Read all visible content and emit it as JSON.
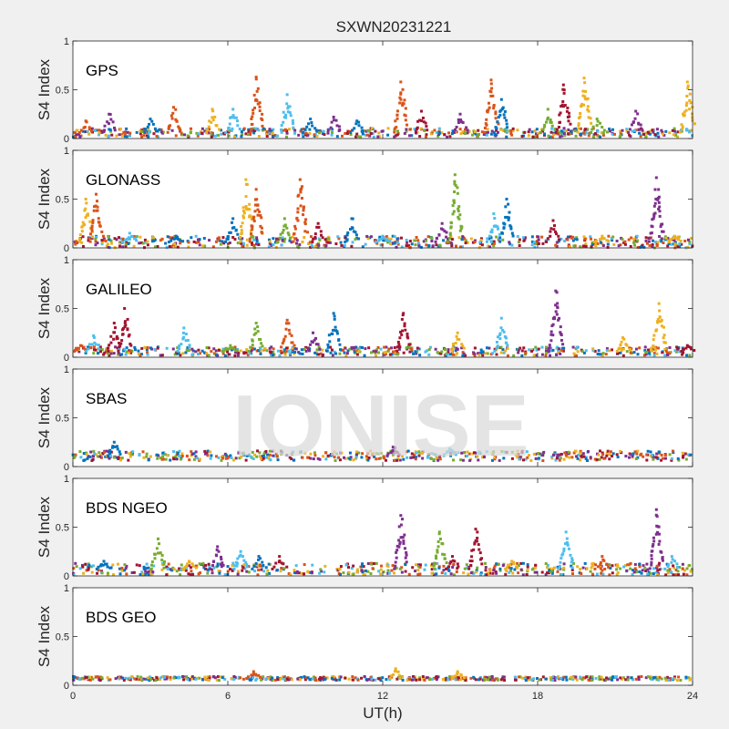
{
  "figure": {
    "title": "SXWN20231221",
    "xlabel": "UT(h)",
    "ylabel": "S4 Index",
    "watermark": "IONISE",
    "background": "#f0f0f0",
    "axes_background": "#ffffff"
  },
  "series_colors": [
    "#0072bd",
    "#d95319",
    "#edb120",
    "#7e2f8e",
    "#77ac30",
    "#4dbeee",
    "#a2142f"
  ],
  "chart_data": [
    {
      "type": "scatter",
      "label": "GPS",
      "xlim": [
        0,
        24
      ],
      "ylim": [
        0,
        1
      ],
      "xticks": [
        0,
        6,
        12,
        18,
        24
      ],
      "yticks": [
        0,
        0.5,
        1
      ],
      "baseline": 0.06,
      "background_band": [
        0.03,
        0.12
      ],
      "bursts": [
        {
          "x": 0.5,
          "peak": 0.18,
          "c": 1
        },
        {
          "x": 1.4,
          "peak": 0.25,
          "c": 3
        },
        {
          "x": 3.0,
          "peak": 0.2,
          "c": 0
        },
        {
          "x": 3.9,
          "peak": 0.32,
          "c": 1
        },
        {
          "x": 5.4,
          "peak": 0.3,
          "c": 2
        },
        {
          "x": 6.2,
          "peak": 0.3,
          "c": 5
        },
        {
          "x": 7.1,
          "peak": 0.63,
          "c": 1
        },
        {
          "x": 8.3,
          "peak": 0.45,
          "c": 5
        },
        {
          "x": 9.2,
          "peak": 0.2,
          "c": 0
        },
        {
          "x": 10.1,
          "peak": 0.22,
          "c": 3
        },
        {
          "x": 11.0,
          "peak": 0.18,
          "c": 0
        },
        {
          "x": 12.7,
          "peak": 0.58,
          "c": 1
        },
        {
          "x": 13.5,
          "peak": 0.28,
          "c": 6
        },
        {
          "x": 15.0,
          "peak": 0.25,
          "c": 3
        },
        {
          "x": 16.2,
          "peak": 0.6,
          "c": 1
        },
        {
          "x": 16.6,
          "peak": 0.4,
          "c": 0
        },
        {
          "x": 18.4,
          "peak": 0.3,
          "c": 4
        },
        {
          "x": 19.0,
          "peak": 0.55,
          "c": 6
        },
        {
          "x": 19.8,
          "peak": 0.62,
          "c": 2
        },
        {
          "x": 20.3,
          "peak": 0.2,
          "c": 4
        },
        {
          "x": 21.8,
          "peak": 0.28,
          "c": 3
        },
        {
          "x": 23.8,
          "peak": 0.58,
          "c": 2
        }
      ]
    },
    {
      "type": "scatter",
      "label": "GLONASS",
      "xlim": [
        0,
        24
      ],
      "ylim": [
        0,
        1
      ],
      "xticks": [
        0,
        6,
        12,
        18,
        24
      ],
      "yticks": [
        0,
        0.5,
        1
      ],
      "baseline": 0.06,
      "background_band": [
        0.02,
        0.14
      ],
      "bursts": [
        {
          "x": 0.5,
          "peak": 0.5,
          "c": 2
        },
        {
          "x": 0.9,
          "peak": 0.55,
          "c": 1
        },
        {
          "x": 2.2,
          "peak": 0.15,
          "c": 5
        },
        {
          "x": 4.0,
          "peak": 0.12,
          "c": 0
        },
        {
          "x": 6.2,
          "peak": 0.3,
          "c": 0
        },
        {
          "x": 6.7,
          "peak": 0.7,
          "c": 2
        },
        {
          "x": 7.1,
          "peak": 0.6,
          "c": 1
        },
        {
          "x": 8.2,
          "peak": 0.3,
          "c": 4
        },
        {
          "x": 8.8,
          "peak": 0.7,
          "c": 1
        },
        {
          "x": 9.5,
          "peak": 0.25,
          "c": 6
        },
        {
          "x": 10.8,
          "peak": 0.3,
          "c": 0
        },
        {
          "x": 12.0,
          "peak": 0.12,
          "c": 5
        },
        {
          "x": 14.3,
          "peak": 0.25,
          "c": 3
        },
        {
          "x": 14.8,
          "peak": 0.75,
          "c": 4
        },
        {
          "x": 16.3,
          "peak": 0.35,
          "c": 5
        },
        {
          "x": 16.8,
          "peak": 0.5,
          "c": 0
        },
        {
          "x": 18.6,
          "peak": 0.28,
          "c": 6
        },
        {
          "x": 20.5,
          "peak": 0.12,
          "c": 2
        },
        {
          "x": 22.6,
          "peak": 0.72,
          "c": 3
        },
        {
          "x": 23.3,
          "peak": 0.12,
          "c": 2
        }
      ]
    },
    {
      "type": "scatter",
      "label": "GALILEO",
      "xlim": [
        0,
        24
      ],
      "ylim": [
        0,
        1
      ],
      "xticks": [
        0,
        6,
        12,
        18,
        24
      ],
      "yticks": [
        0,
        0.5,
        1
      ],
      "baseline": 0.06,
      "background_band": [
        0.03,
        0.12
      ],
      "bursts": [
        {
          "x": 0.3,
          "peak": 0.12,
          "c": 1
        },
        {
          "x": 0.8,
          "peak": 0.22,
          "c": 5
        },
        {
          "x": 1.6,
          "peak": 0.35,
          "c": 6
        },
        {
          "x": 2.0,
          "peak": 0.5,
          "c": 6
        },
        {
          "x": 4.3,
          "peak": 0.3,
          "c": 5
        },
        {
          "x": 6.1,
          "peak": 0.12,
          "c": 4
        },
        {
          "x": 7.1,
          "peak": 0.35,
          "c": 4
        },
        {
          "x": 8.3,
          "peak": 0.38,
          "c": 1
        },
        {
          "x": 9.3,
          "peak": 0.25,
          "c": 3
        },
        {
          "x": 10.1,
          "peak": 0.45,
          "c": 0
        },
        {
          "x": 12.8,
          "peak": 0.45,
          "c": 6
        },
        {
          "x": 14.9,
          "peak": 0.25,
          "c": 2
        },
        {
          "x": 16.6,
          "peak": 0.4,
          "c": 5
        },
        {
          "x": 18.7,
          "peak": 0.68,
          "c": 3
        },
        {
          "x": 21.3,
          "peak": 0.2,
          "c": 2
        },
        {
          "x": 22.7,
          "peak": 0.55,
          "c": 2
        },
        {
          "x": 23.8,
          "peak": 0.12,
          "c": 6
        }
      ]
    },
    {
      "type": "scatter",
      "label": "SBAS",
      "xlim": [
        0,
        24
      ],
      "ylim": [
        0,
        1
      ],
      "xticks": [
        0,
        6,
        12,
        18,
        24
      ],
      "yticks": [
        0,
        0.5,
        1
      ],
      "baseline": 0.11,
      "background_band": [
        0.07,
        0.17
      ],
      "bursts": [
        {
          "x": 1.6,
          "peak": 0.25,
          "c": 0
        },
        {
          "x": 12.4,
          "peak": 0.2,
          "c": 3
        },
        {
          "x": 14.6,
          "peak": 0.18,
          "c": 5
        }
      ]
    },
    {
      "type": "scatter",
      "label": "BDS NGEO",
      "xlim": [
        0,
        24
      ],
      "ylim": [
        0,
        1
      ],
      "xticks": [
        0,
        6,
        12,
        18,
        24
      ],
      "yticks": [
        0,
        0.5,
        1
      ],
      "baseline": 0.07,
      "background_band": [
        0.02,
        0.14
      ],
      "bursts": [
        {
          "x": 1.2,
          "peak": 0.15,
          "c": 0
        },
        {
          "x": 3.3,
          "peak": 0.38,
          "c": 4
        },
        {
          "x": 4.5,
          "peak": 0.15,
          "c": 2
        },
        {
          "x": 5.6,
          "peak": 0.3,
          "c": 3
        },
        {
          "x": 6.5,
          "peak": 0.25,
          "c": 5
        },
        {
          "x": 7.2,
          "peak": 0.2,
          "c": 0
        },
        {
          "x": 8.0,
          "peak": 0.2,
          "c": 6
        },
        {
          "x": 12.7,
          "peak": 0.62,
          "c": 3
        },
        {
          "x": 14.2,
          "peak": 0.45,
          "c": 4
        },
        {
          "x": 14.7,
          "peak": 0.2,
          "c": 6
        },
        {
          "x": 15.6,
          "peak": 0.48,
          "c": 6
        },
        {
          "x": 17.0,
          "peak": 0.15,
          "c": 2
        },
        {
          "x": 19.1,
          "peak": 0.45,
          "c": 5
        },
        {
          "x": 20.5,
          "peak": 0.2,
          "c": 1
        },
        {
          "x": 22.6,
          "peak": 0.68,
          "c": 3
        },
        {
          "x": 23.2,
          "peak": 0.2,
          "c": 5
        }
      ]
    },
    {
      "type": "scatter",
      "label": "BDS GEO",
      "xlim": [
        0,
        24
      ],
      "ylim": [
        0,
        1
      ],
      "xticks": [
        0,
        6,
        12,
        18,
        24
      ],
      "yticks": [
        0,
        0.5,
        1
      ],
      "baseline": 0.07,
      "background_band": [
        0.05,
        0.09
      ],
      "bursts": [
        {
          "x": 7.0,
          "peak": 0.14,
          "c": 1
        },
        {
          "x": 12.5,
          "peak": 0.17,
          "c": 2
        },
        {
          "x": 14.9,
          "peak": 0.14,
          "c": 2
        }
      ]
    }
  ]
}
